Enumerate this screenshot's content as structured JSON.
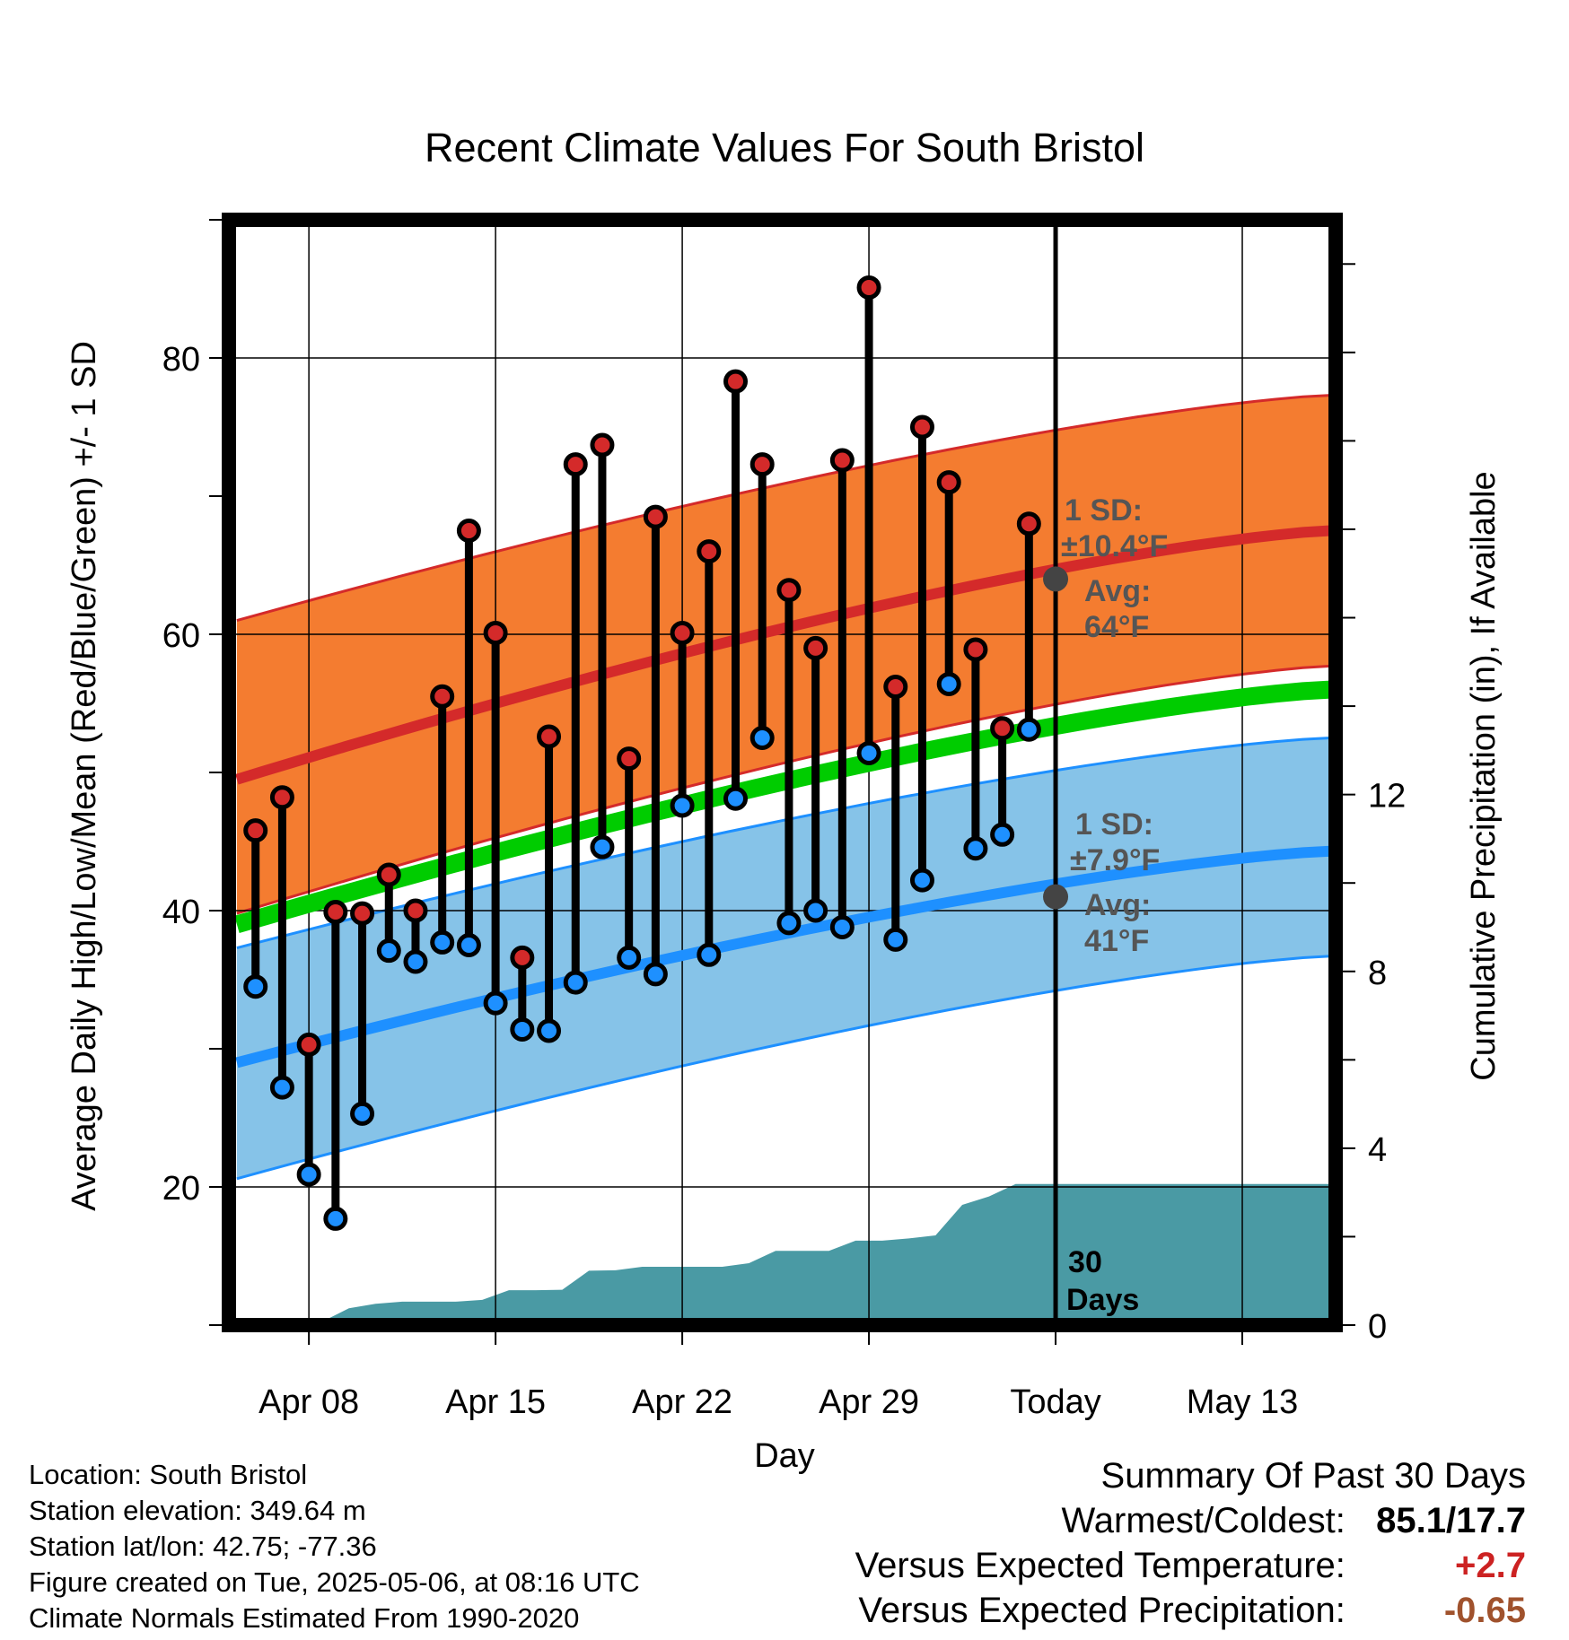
{
  "chart_data": {
    "type": "line",
    "title": "Recent Climate Values For South Bristol",
    "xlabel": "Day",
    "ylabel": "Average Daily High/Low/Mean (Red/Blue/Green) +/- 1 SD",
    "ylabel_right": "Cumulative Precipitation (in), If Available",
    "x_ticks": [
      "Apr 08",
      "Apr 15",
      "Apr 22",
      "Apr 29",
      "Today",
      "May 13"
    ],
    "y_ticks": [
      "20",
      "40",
      "60",
      "80"
    ],
    "y_ticks_right": [
      "0",
      "4",
      "8",
      "12"
    ],
    "ylim": [
      10,
      90
    ],
    "ylim_right": [
      0,
      25
    ],
    "xlim": [
      "Apr 05",
      "Mai 16"
    ],
    "grid": true,
    "days": [
      "Apr 06",
      "Apr 07",
      "Apr 08",
      "Apr 09",
      "Apr 10",
      "Apr 11",
      "Apr 12",
      "Apr 13",
      "Apr 14",
      "Apr 15",
      "Apr 16",
      "Apr 17",
      "Apr 18",
      "Apr 19",
      "Apr 20",
      "Apr 21",
      "Apr 22",
      "Apr 23",
      "Apr 24",
      "Apr 25",
      "Apr 26",
      "Apr 27",
      "Apr 28",
      "Apr 29",
      "Apr 30",
      "May 01",
      "May 02",
      "May 03",
      "May 04",
      "May 05"
    ],
    "series": [
      {
        "name": "Daily High",
        "color": "#cc2222",
        "values": [
          45.8,
          48.2,
          30.3,
          39.9,
          39.8,
          42.6,
          40.0,
          55.5,
          67.5,
          60.1,
          36.6,
          52.6,
          72.3,
          73.7,
          51.0,
          68.5,
          60.1,
          66.0,
          78.3,
          72.3,
          63.2,
          59.0,
          72.6,
          85.1,
          56.2,
          75.0,
          71.0,
          58.9,
          53.2,
          68.0
        ]
      },
      {
        "name": "Daily Low",
        "color": "#2299ee",
        "values": [
          34.5,
          27.2,
          20.9,
          17.7,
          25.3,
          37.1,
          36.3,
          37.7,
          37.5,
          33.3,
          31.4,
          31.3,
          34.8,
          44.6,
          36.6,
          35.4,
          47.6,
          36.8,
          48.1,
          52.5,
          39.1,
          40.0,
          38.8,
          51.4,
          37.9,
          42.2,
          56.4,
          44.5,
          45.5,
          53.1
        ]
      }
    ],
    "precipitation": {
      "name": "Cumulative Precipitation",
      "color": "#4a9aa4",
      "values": [
        0.0,
        0.03,
        0.07,
        0.08,
        0.38,
        0.48,
        0.53,
        0.53,
        0.53,
        0.57,
        0.79,
        0.79,
        0.8,
        1.23,
        1.24,
        1.32,
        1.32,
        1.32,
        1.32,
        1.4,
        1.68,
        1.68,
        1.68,
        1.91,
        1.91,
        1.96,
        2.03,
        2.72,
        2.91,
        3.19,
        3.19,
        3.19,
        3.19,
        3.19,
        3.19,
        3.19,
        3.19,
        3.19,
        3.19,
        3.19,
        3.19
      ]
    },
    "normals": {
      "high_mean_start": 49.5,
      "high_mean_end": 67.5,
      "high_sd_upper_start": 61.0,
      "high_sd_upper_end": 77.3,
      "high_sd_lower_start": 39.8,
      "high_sd_lower_end": 57.7,
      "low_mean_start": 29.0,
      "low_mean_end": 44.3,
      "low_sd_upper_start": 37.3,
      "low_sd_upper_end": 52.5,
      "low_sd_lower_start": 20.6,
      "low_sd_lower_end": 36.7,
      "mean_start": 39.0,
      "mean_end": 56.0
    },
    "annotations": {
      "high_sd_label": "1 SD:",
      "high_sd_value": "±10.4°F",
      "high_avg_label": "Avg:",
      "high_avg_value": "64°F",
      "low_sd_label": "1 SD:",
      "low_sd_value": "±7.9°F",
      "low_avg_label": "Avg:",
      "low_avg_value": "41°F",
      "days_count": "30",
      "days_word": "Days",
      "today_high_avg": 64,
      "today_low_avg": 41
    }
  },
  "info": {
    "location": "Location: South Bristol",
    "elevation": "Station elevation: 349.64 m",
    "latlon": "Station lat/lon: 42.75; -77.36",
    "created": "Figure created on Tue, 2025-05-06, at 08:16 UTC",
    "normals_source": "Climate Normals Estimated From 1990-2020"
  },
  "summary": {
    "heading": "Summary Of Past 30 Days",
    "warm_cold_label": "Warmest/Coldest:",
    "warm_cold_value": "85.1/17.7",
    "temp_label": "Versus Expected Temperature:",
    "temp_value": "+2.7",
    "temp_color": "#cc2222",
    "precip_label": "Versus Expected Precipitation:",
    "precip_value": "-0.65",
    "precip_color": "#a0522d"
  },
  "colors": {
    "high_band": "#f47c30",
    "high_line": "#d42a2a",
    "low_band": "#86c3e8",
    "low_line": "#1e90ff",
    "mean_line": "#00cc00",
    "precip": "#4a9aa4",
    "avg_dot": "#444444",
    "annotation_text": "#555555"
  }
}
